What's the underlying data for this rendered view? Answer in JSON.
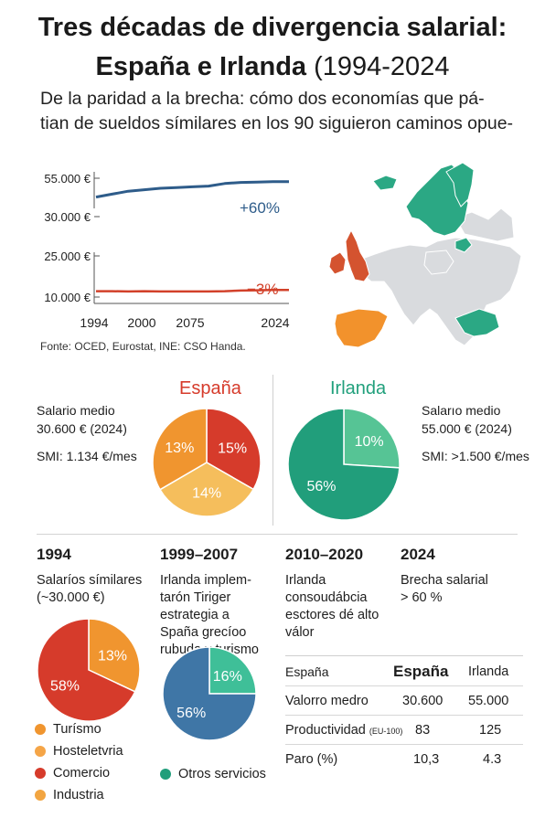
{
  "header": {
    "title_line1": "Tres décadas de divergencia salarial:",
    "title_line2_bold": "España e Irlanda",
    "title_line2_light": " (1994-2024",
    "subtitle_line1": "De la paridad a la brecha: cómo dos economías que pá-",
    "subtitle_line2": "tian de sueldos símilares en los 90 siguieron caminos opue-"
  },
  "chart_data": [
    {
      "type": "line",
      "title": "",
      "y_tick_labels": [
        "55.000 €",
        "30.000 €",
        "25.000 €",
        "10.000 €"
      ],
      "x_tick_labels": [
        "1994",
        "2000",
        "2075",
        "2024"
      ],
      "series": [
        {
          "color": "#2e5c8a",
          "values": [
            0.36,
            0.44,
            0.52,
            0.56,
            0.6,
            0.62,
            0.64,
            0.66,
            0.73,
            0.76,
            0.77,
            0.78,
            0.78
          ]
        },
        {
          "color": "#d2412a",
          "values": [
            0.1,
            0.1,
            0.09,
            0.1,
            0.09,
            0.09,
            0.09,
            0.09,
            0.1,
            0.12,
            0.13,
            0.14,
            0.14
          ]
        }
      ],
      "annotations": [
        "+60%",
        "−3%"
      ],
      "source": "Fonte: OCED, Eurostat, INE: CSO Handa."
    },
    {
      "type": "pie",
      "title": "España",
      "slices": [
        {
          "label": "15%",
          "value": 33.3,
          "color": "#d63b2b"
        },
        {
          "label": "14%",
          "value": 33.3,
          "color": "#f5be5c"
        },
        {
          "label": "13%",
          "value": 33.4,
          "color": "#f0952f"
        }
      ]
    },
    {
      "type": "pie",
      "title": "Irlanda",
      "slices": [
        {
          "label": "10%",
          "value": 26,
          "color": "#56c495"
        },
        {
          "label": "56%",
          "value": 74,
          "color": "#219e7b"
        }
      ]
    },
    {
      "type": "pie",
      "title": "1994",
      "slices": [
        {
          "label": "13%",
          "value": 32,
          "color": "#f0952f"
        },
        {
          "label": "58%",
          "value": 68,
          "color": "#d63b2b"
        }
      ]
    },
    {
      "type": "pie",
      "title": "1999–2007",
      "slices": [
        {
          "label": "16%",
          "value": 25,
          "color": "#3fbf98"
        },
        {
          "label": "56%",
          "value": 75,
          "color": "#3f76a6"
        }
      ]
    },
    {
      "type": "table",
      "columns": [
        "España",
        "España",
        "Irlanda"
      ],
      "rows": [
        {
          "label": "Valorro medro",
          "label_small": "",
          "es": "30.600",
          "ie": "55.000"
        },
        {
          "label": "Productividad",
          "label_small": "(EU-100)",
          "es": "83",
          "ie": "125"
        },
        {
          "label": "Paro (%)",
          "label_small": "",
          "es": "10,3",
          "ie": "4.3"
        }
      ]
    }
  ],
  "spain_stats": {
    "line1": "Salario medio",
    "line2": "30.600 € (2024)",
    "line3": "SMI: 1.134 €/mes",
    "color": "#d63b2b"
  },
  "ireland_stats": {
    "line1": "Salarıo medio",
    "line2": "55.000 € (2024)",
    "line3": "SMI: >1.500 €/mes",
    "color": "#21a07c"
  },
  "timeline": {
    "c1": {
      "head": "1994",
      "l1": "Salaríos símilares",
      "l2": "(~30.000 €)"
    },
    "c2": {
      "head": "1999–2007",
      "l1": "Irlanda implem-",
      "l2": "tarón Tiriger",
      "l3": "estrategia a",
      "l4": "Spaña grecíoo",
      "l5": "rubuda y turismo"
    },
    "c3": {
      "head": "2010–2020",
      "l1": "Irlanda",
      "l2": "consoudábcia",
      "l3": "esctores dé alto",
      "l4": "válor"
    },
    "c4": {
      "head": "2024",
      "l1": "Brecha salarial",
      "l2": "> 60 %"
    }
  },
  "legend": [
    {
      "label": "Turísmo",
      "color": "#f0952f"
    },
    {
      "label": "Hosteletvria",
      "color": "#f5a547"
    },
    {
      "label": "Comercio",
      "color": "#d63b2b"
    },
    {
      "label": "Industria",
      "color": "#f2a541"
    }
  ],
  "legend_other": {
    "label": "Otros servicios",
    "color": "#219e7b"
  },
  "map_colors": {
    "europe": "#d9dbde",
    "nordics": "#2ba884",
    "ireland_uk": "#d4532f",
    "iberia": "#f2922c"
  }
}
